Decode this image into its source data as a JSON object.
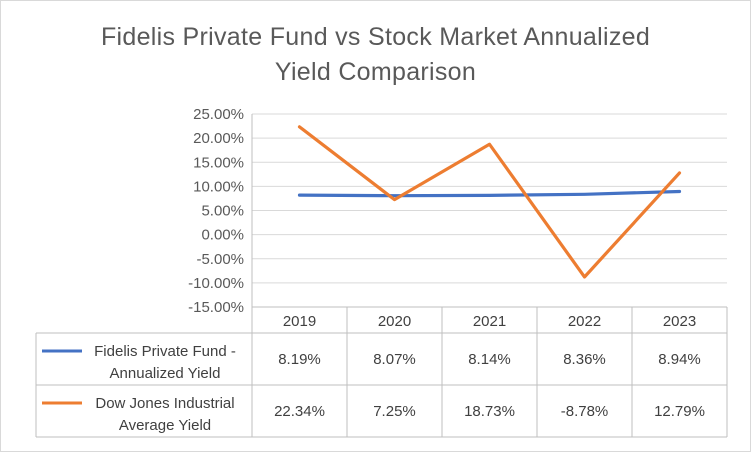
{
  "chart_data": {
    "type": "line",
    "title_lines": [
      "Fidelis Private Fund vs Stock Market Annualized",
      "Yield Comparison"
    ],
    "categories": [
      "2019",
      "2020",
      "2021",
      "2022",
      "2023"
    ],
    "y_ticks": [
      "25.00%",
      "20.00%",
      "15.00%",
      "10.00%",
      "5.00%",
      "0.00%",
      "-5.00%",
      "-10.00%",
      "-15.00%"
    ],
    "ylim": [
      -15,
      25
    ],
    "y_step": 5,
    "grid": true,
    "legend": "data-table",
    "series": [
      {
        "name_lines": [
          "Fidelis Private Fund -",
          "Annualized Yield"
        ],
        "color": "#4472c4",
        "values": [
          8.19,
          8.07,
          8.14,
          8.36,
          8.94
        ],
        "labels": [
          "8.19%",
          "8.07%",
          "8.14%",
          "8.36%",
          "8.94%"
        ]
      },
      {
        "name_lines": [
          "Dow Jones Industrial",
          "Average Yield"
        ],
        "color": "#ed7d31",
        "values": [
          22.34,
          7.25,
          18.73,
          -8.78,
          12.79
        ],
        "labels": [
          "22.34%",
          "7.25%",
          "18.73%",
          "-8.78%",
          "12.79%"
        ]
      }
    ]
  }
}
